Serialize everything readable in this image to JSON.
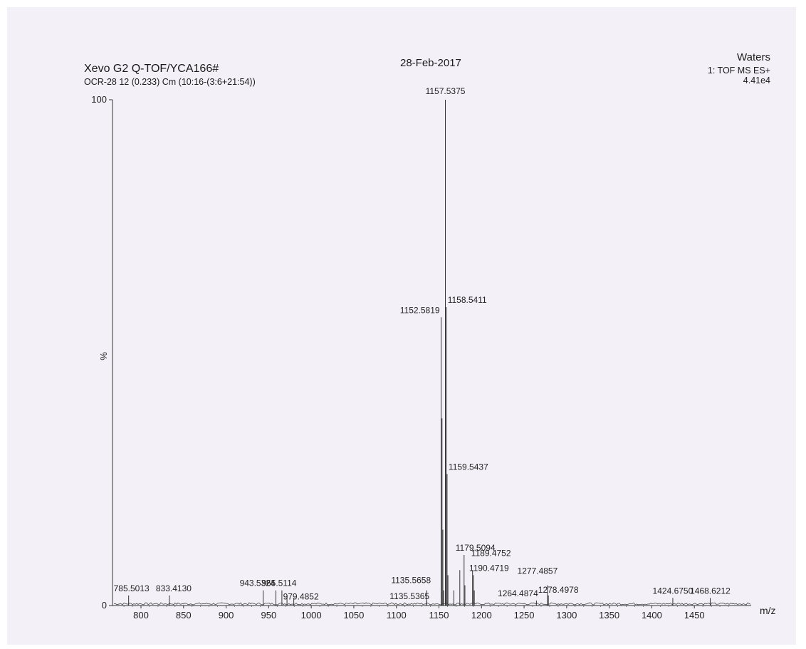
{
  "header": {
    "instrument_title": "Xevo G2 Q-TOF/YCA166#",
    "sample_info": "OCR-28 12 (0.233) Cm (10:16-(3:6+21:54))",
    "date": "28-Feb-2017",
    "vendor": "Waters",
    "scan_mode": "1: TOF MS ES+",
    "intensity_max": "4.41e4"
  },
  "colors": {
    "paper": "#f3f1f7",
    "ink": "#1a1a1a",
    "peak": "#333333"
  },
  "chart_data": {
    "type": "bar",
    "title": "",
    "xlabel": "m/z",
    "ylabel": "%",
    "xlim": [
      775,
      1495
    ],
    "ylim": [
      0,
      100
    ],
    "x_ticks": [
      800,
      850,
      900,
      950,
      1000,
      1050,
      1100,
      1150,
      1200,
      1250,
      1300,
      1350,
      1400,
      1450
    ],
    "y_ticks": [
      0,
      100
    ],
    "grid": false,
    "peaks": [
      {
        "mz": 785.5013,
        "intensity": 2,
        "label": "785.5013"
      },
      {
        "mz": 833.413,
        "intensity": 2,
        "label": "833.4130"
      },
      {
        "mz": 943.5324,
        "intensity": 3,
        "label": "943.5324"
      },
      {
        "mz": 958.5,
        "intensity": 3
      },
      {
        "mz": 965.5114,
        "intensity": 3,
        "label": "965.5114"
      },
      {
        "mz": 971.5,
        "intensity": 2
      },
      {
        "mz": 979.4852,
        "intensity": 1.5,
        "label": "979.4852"
      },
      {
        "mz": 1135.5365,
        "intensity": 1,
        "label": "1135.5365"
      },
      {
        "mz": 1135.5658,
        "intensity": 3,
        "label": "1135.5658"
      },
      {
        "mz": 1152.5819,
        "intensity": 57,
        "label": "1152.5819"
      },
      {
        "mz": 1153.58,
        "intensity": 37
      },
      {
        "mz": 1154.58,
        "intensity": 15
      },
      {
        "mz": 1155.58,
        "intensity": 3
      },
      {
        "mz": 1157.5375,
        "intensity": 100,
        "label": "1157.5375"
      },
      {
        "mz": 1158.5411,
        "intensity": 59,
        "label": "1158.5411"
      },
      {
        "mz": 1159.5437,
        "intensity": 26,
        "label": "1159.5437"
      },
      {
        "mz": 1160.55,
        "intensity": 6
      },
      {
        "mz": 1167.5,
        "intensity": 3
      },
      {
        "mz": 1174.5,
        "intensity": 7
      },
      {
        "mz": 1179.5094,
        "intensity": 10,
        "label": "1179.5094"
      },
      {
        "mz": 1180.5,
        "intensity": 4
      },
      {
        "mz": 1189.4752,
        "intensity": 7,
        "label": "1189.4752"
      },
      {
        "mz": 1190.4719,
        "intensity": 6,
        "label": "1190.4719"
      },
      {
        "mz": 1191.5,
        "intensity": 3
      },
      {
        "mz": 1264.4874,
        "intensity": 1,
        "label": "1264.4874"
      },
      {
        "mz": 1277.4857,
        "intensity": 4,
        "label": "1277.4857"
      },
      {
        "mz": 1278.4978,
        "intensity": 2,
        "label": "1278.4978"
      },
      {
        "mz": 1424.675,
        "intensity": 1.5,
        "label": "1424.6750"
      },
      {
        "mz": 1468.6212,
        "intensity": 1.5,
        "label": "1468.6212"
      }
    ]
  }
}
